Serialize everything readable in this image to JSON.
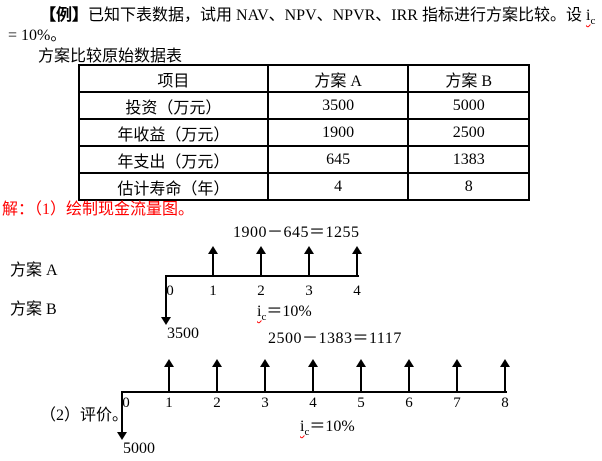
{
  "colors": {
    "background": "#ffffff",
    "text": "#000000",
    "highlight_red": "#ff0000"
  },
  "intro": {
    "tag": "【例】",
    "line1_text": "已知下表数据，试用 NAV、NPV、NPVR、IRR 指标进行方案比较。设 ",
    "rate_symbol_base": "i",
    "rate_symbol_sub": "c",
    "line2_text": "= 10%。",
    "table_caption": "方案比较原始数据表"
  },
  "table": {
    "headers": [
      "项目",
      "方案 A",
      "方案 B"
    ],
    "rows": [
      [
        "投资（万元）",
        "3500",
        "5000"
      ],
      [
        "年收益（万元）",
        "1900",
        "2500"
      ],
      [
        "年支出（万元）",
        "645",
        "1383"
      ],
      [
        "估计寿命（年）",
        "4",
        "8"
      ]
    ]
  },
  "solution": {
    "step1": "解：（1）绘制现金流量图。",
    "step2": "（2）评价。"
  },
  "diagram_a": {
    "side_label": "方案 A",
    "formula": "1900－645＝1255",
    "ticks": [
      "0",
      "1",
      "2",
      "3",
      "4"
    ],
    "rate_base": "i",
    "rate_sub": "c",
    "rate_value": "＝10%",
    "investment": "3500"
  },
  "diagram_b": {
    "side_label": "方案 B",
    "formula": "2500－1383＝1117",
    "ticks": [
      "0",
      "1",
      "2",
      "3",
      "4",
      "5",
      "6",
      "7",
      "8"
    ],
    "rate_base": "i",
    "rate_sub": "c",
    "rate_value": "＝10%",
    "investment": "5000"
  }
}
